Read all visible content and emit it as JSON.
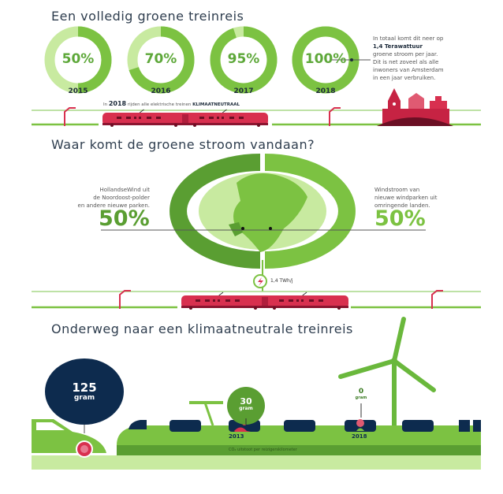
{
  "section1": {
    "title": "Een volledig groene treinreis",
    "donuts": [
      {
        "label": "50%",
        "year": "2015",
        "value": 50
      },
      {
        "label": "70%",
        "year": "2016",
        "value": 70
      },
      {
        "label": "95%",
        "year": "2017",
        "value": 95
      },
      {
        "label": "100%",
        "year": "2018",
        "value": 100
      }
    ],
    "note_line1": "In totaal komt dit neer op",
    "note_bold": "1,4 Terawattuur",
    "note_line3": "groene stroom per jaar.",
    "note_line4": "Dit is net zoveel als alle",
    "note_line5": "inwoners van Amsterdam",
    "note_line6": "in een jaar verbruiken.",
    "caption_pre": "In",
    "caption_year": "2018",
    "caption_mid": "rijden alle elektrische treinen",
    "caption_bold": "KLIMAATNEUTRAAL"
  },
  "section2": {
    "title": "Waar komt de groene stroom vandaan?",
    "left_text": [
      "HollandseWind uit",
      "de Noordoost-polder",
      "en andere nieuwe parken."
    ],
    "left_pct": "50%",
    "right_text": [
      "Windstroom van",
      "nieuwe windparken uit",
      "omringende landen."
    ],
    "right_pct": "50%",
    "energy": "1,4 TWh/j"
  },
  "section3": {
    "title": "Onderweg naar een klimaatneutrale treinreis",
    "car_value": "125",
    "car_unit": "gram",
    "train2013_value": "30",
    "train2013_unit": "gram",
    "year2013": "2013",
    "train2018_value": "0",
    "train2018_unit": "gram",
    "year2018": "2018",
    "footnote": "CO₂ uitstoot per reizigerskilometer"
  },
  "colors": {
    "green": "#7cc242",
    "light_green": "#c8eaa0",
    "dark_green": "#5a9e32",
    "navy": "#0d2b4e",
    "red": "#d8304f"
  }
}
